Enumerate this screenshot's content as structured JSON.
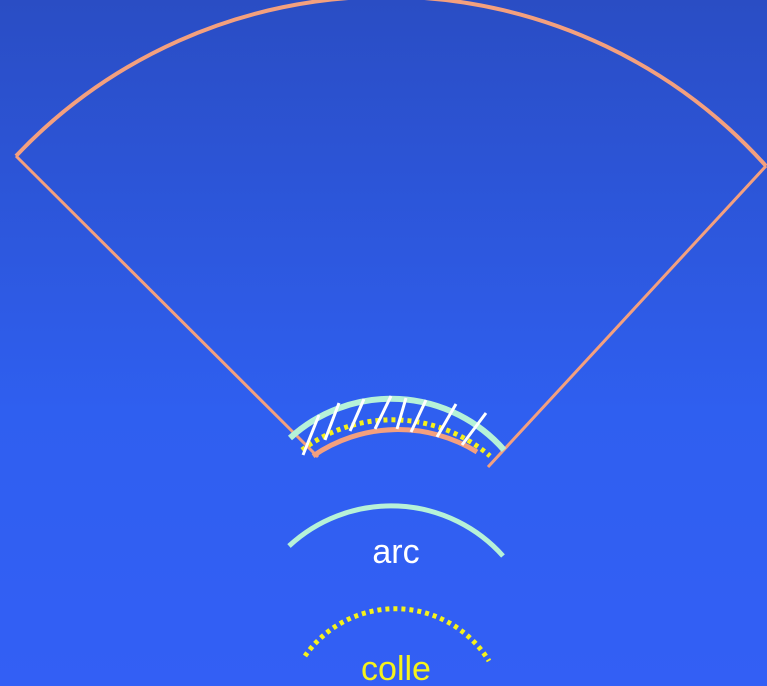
{
  "labels": {
    "arc": "arc",
    "glue": "colle"
  },
  "colors": {
    "background_top": "#2a4dc4",
    "background_bottom": "#335ff5",
    "sector_outline": "#f4a07e",
    "arc": "#b6f2d8",
    "glue_dots": "#f6f21a",
    "arc_label": "#ffffff",
    "glue_label": "#f6f21a",
    "ticks": "#ffffff"
  }
}
